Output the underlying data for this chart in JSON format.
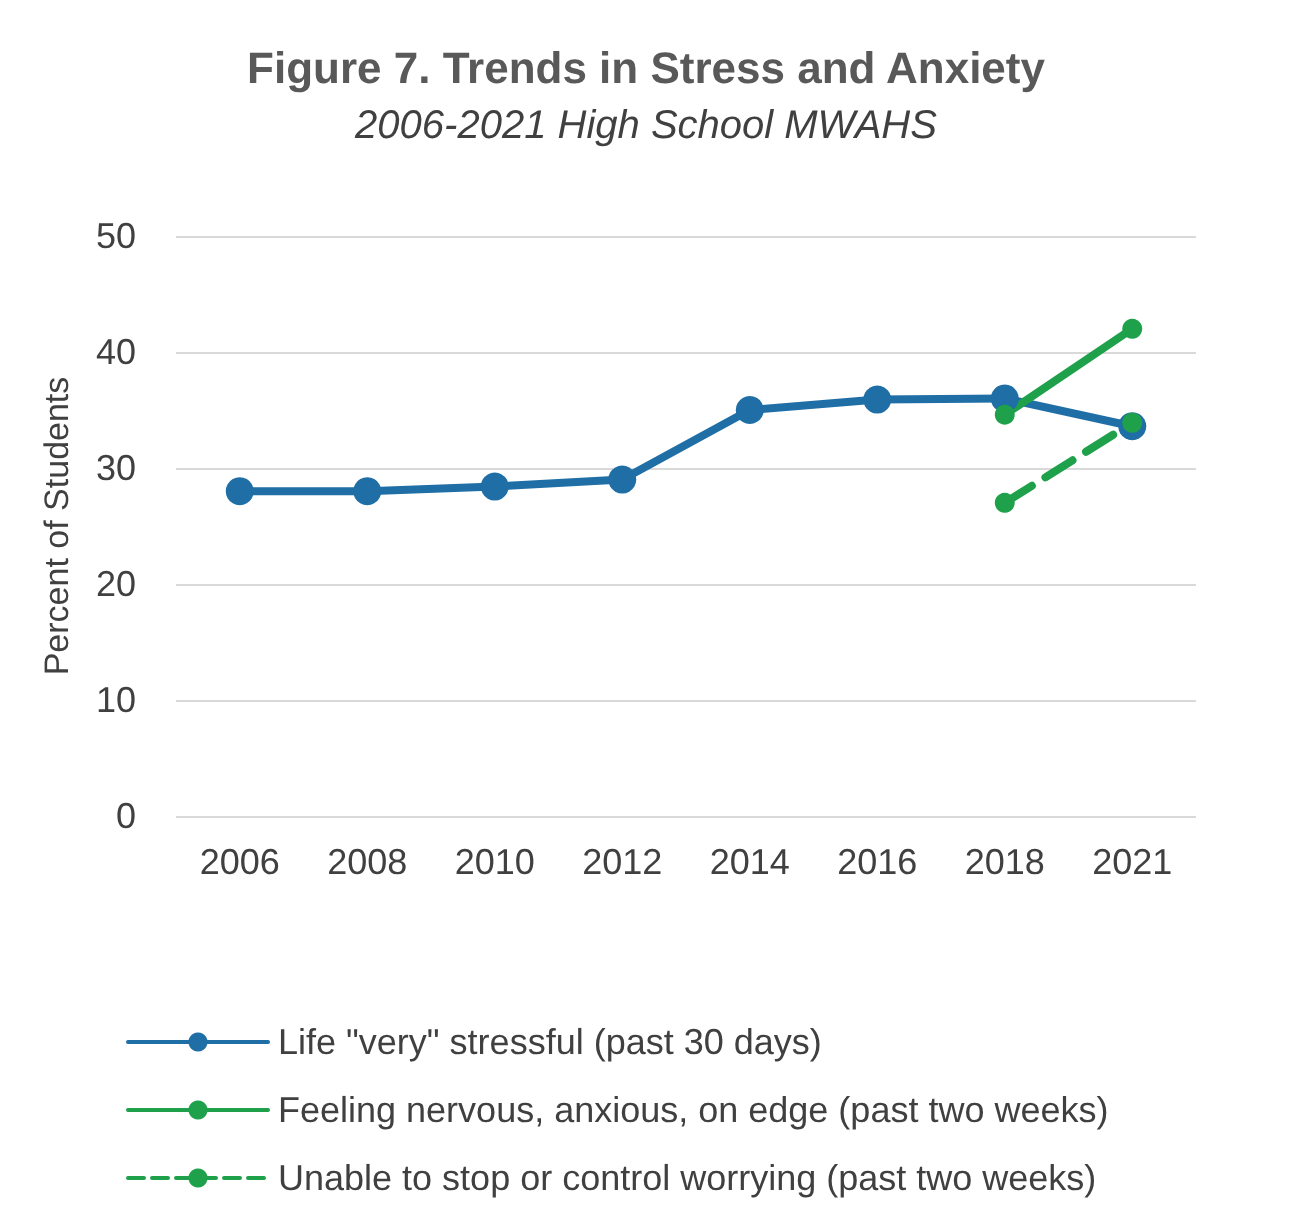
{
  "chart_data": {
    "type": "line",
    "title": "Figure 7. Trends in Stress and Anxiety",
    "subtitle": "2006-2021 High School MWAHS",
    "ylabel": "Percent of Students",
    "categories": [
      "2006",
      "2008",
      "2010",
      "2012",
      "2014",
      "2016",
      "2018",
      "2021"
    ],
    "series": [
      {
        "name": "Life \"very\" stressful (past 30 days)",
        "color": "#1f6ea5",
        "values": [
          28,
          28,
          28.4,
          29,
          35,
          35.9,
          36,
          33.6
        ]
      },
      {
        "name": "Feeling nervous, anxious, on edge (past two weeks)",
        "color": "#1ea14a",
        "values": [
          null,
          null,
          null,
          null,
          null,
          null,
          34.6,
          42
        ]
      },
      {
        "name": "Unable to stop or control worrying (past two weeks)",
        "color": "#1ea14a",
        "values": [
          null,
          null,
          null,
          null,
          null,
          null,
          27,
          33.9
        ],
        "line_style": "dashed"
      }
    ],
    "ylim": [
      0,
      50
    ],
    "yticks": [
      0,
      10,
      20,
      30,
      40,
      50
    ],
    "grid": "y",
    "legend": "bottom",
    "marker": "circle",
    "line_style": "solid"
  }
}
